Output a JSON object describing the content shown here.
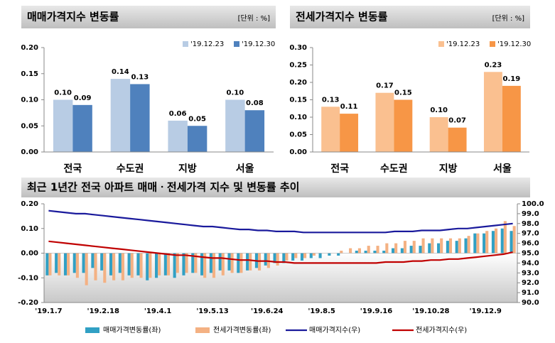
{
  "chart_data": [
    {
      "type": "bar",
      "title": "매매가격지수 변동률",
      "subtitle": "[단위 : %]",
      "categories": [
        "전국",
        "수도권",
        "지방",
        "서울"
      ],
      "series": [
        {
          "name": "'19.12.23",
          "color": "#b8cce4",
          "values": [
            0.1,
            0.14,
            0.06,
            0.1
          ],
          "value_labels": [
            "0.10",
            "0.14",
            "0.06",
            "0.10"
          ]
        },
        {
          "name": "'19.12.30",
          "color": "#4f81bd",
          "values": [
            0.09,
            0.13,
            0.05,
            0.08
          ],
          "value_labels": [
            "0.09",
            "0.13",
            "0.05",
            "0.08"
          ]
        }
      ],
      "ylim": [
        0,
        0.2
      ],
      "yticks": [
        {
          "value": 0,
          "label": "0.00"
        },
        0.05,
        {
          "value": 0.1,
          "label": "0.10"
        },
        0.15,
        {
          "value": 0.2,
          "label": "0.20"
        }
      ],
      "legend": "top-right"
    },
    {
      "type": "bar",
      "title": "전세가격지수 변동률",
      "subtitle": "[단위 : %]",
      "categories": [
        "전국",
        "수도권",
        "지방",
        "서울"
      ],
      "series": [
        {
          "name": "'19.12.23",
          "color": "#fac090",
          "values": [
            0.13,
            0.17,
            0.1,
            0.23
          ],
          "value_labels": [
            "0.13",
            "0.17",
            "0.10",
            "0.23"
          ]
        },
        {
          "name": "'19.12.30",
          "color": "#f79646",
          "values": [
            0.11,
            0.15,
            0.07,
            0.19
          ],
          "value_labels": [
            "0.11",
            "0.15",
            "0.07",
            "0.19"
          ]
        }
      ],
      "ylim": [
        0,
        0.3
      ],
      "yticks": [
        {
          "value": 0,
          "label": "0.00"
        },
        0.05,
        {
          "value": 0.1,
          "label": "0.10"
        },
        0.15,
        {
          "value": 0.2,
          "label": "0.20"
        },
        0.25,
        {
          "value": 0.3,
          "label": "0.30"
        }
      ],
      "legend": "top-right"
    },
    {
      "type": "combo",
      "title": "최근 1년간 전국 아파트 매매ㆍ전세가격 지수 및 변동률 추이",
      "categories": [
        "'19.1.7",
        null,
        null,
        null,
        null,
        null,
        "'19.2.18",
        null,
        null,
        null,
        null,
        null,
        "'19.4.1",
        null,
        null,
        null,
        null,
        null,
        "'19.5.13",
        null,
        null,
        null,
        null,
        null,
        "'19.6.24",
        null,
        null,
        null,
        null,
        null,
        "'19.8.5",
        null,
        null,
        null,
        null,
        null,
        "'19.9.16",
        null,
        null,
        null,
        null,
        null,
        "'19.10.28",
        null,
        null,
        null,
        null,
        null,
        "'19.12.9",
        null,
        null,
        null
      ],
      "series": [
        {
          "name": "매매가격변동률(좌)",
          "type": "bar",
          "color": "#31a0c4",
          "values": [
            -0.09,
            -0.08,
            -0.09,
            -0.08,
            -0.08,
            -0.06,
            -0.07,
            -0.09,
            -0.08,
            -0.09,
            -0.09,
            -0.11,
            -0.1,
            -0.09,
            -0.1,
            -0.09,
            -0.08,
            -0.09,
            -0.08,
            -0.07,
            -0.07,
            -0.08,
            -0.07,
            -0.06,
            -0.05,
            -0.04,
            -0.04,
            -0.03,
            -0.03,
            -0.02,
            -0.02,
            -0.01,
            -0.01,
            0.0,
            0.01,
            0.01,
            0.01,
            0.01,
            0.02,
            0.02,
            0.03,
            0.03,
            0.04,
            0.04,
            0.05,
            0.05,
            0.06,
            0.08,
            0.08,
            0.09,
            0.1,
            0.09
          ]
        },
        {
          "name": "전세가격변동률(좌)",
          "type": "bar",
          "color": "#f4b183",
          "values": [
            -0.09,
            -0.09,
            -0.09,
            -0.1,
            -0.13,
            -0.11,
            -0.12,
            -0.11,
            -0.11,
            -0.1,
            -0.1,
            -0.1,
            -0.09,
            -0.09,
            -0.08,
            -0.08,
            -0.08,
            -0.1,
            -0.1,
            -0.09,
            -0.08,
            -0.08,
            -0.07,
            -0.07,
            -0.06,
            -0.05,
            -0.03,
            -0.02,
            -0.02,
            -0.01,
            0.0,
            0.0,
            0.01,
            0.02,
            0.02,
            0.03,
            0.03,
            0.04,
            0.04,
            0.05,
            0.05,
            0.06,
            0.06,
            0.06,
            0.06,
            0.06,
            0.07,
            0.08,
            0.09,
            0.1,
            0.13,
            0.11
          ]
        },
        {
          "name": "매매가격지수(우)",
          "type": "line",
          "axis": "y2",
          "color": "#1a1a9c",
          "values": [
            99.3,
            99.2,
            99.1,
            99.0,
            99.0,
            98.9,
            98.8,
            98.7,
            98.6,
            98.5,
            98.4,
            98.3,
            98.2,
            98.1,
            98.0,
            97.9,
            97.8,
            97.7,
            97.7,
            97.6,
            97.5,
            97.4,
            97.4,
            97.3,
            97.3,
            97.2,
            97.2,
            97.2,
            97.1,
            97.1,
            97.1,
            97.1,
            97.1,
            97.1,
            97.1,
            97.1,
            97.1,
            97.1,
            97.2,
            97.2,
            97.2,
            97.3,
            97.3,
            97.3,
            97.4,
            97.5,
            97.5,
            97.6,
            97.7,
            97.8,
            97.9,
            98.0
          ]
        },
        {
          "name": "전세가격지수(우)",
          "type": "line",
          "axis": "y2",
          "color": "#c00000",
          "values": [
            96.2,
            96.1,
            96.0,
            95.9,
            95.8,
            95.7,
            95.6,
            95.5,
            95.4,
            95.3,
            95.2,
            95.1,
            95.0,
            94.9,
            94.8,
            94.8,
            94.7,
            94.6,
            94.5,
            94.5,
            94.4,
            94.3,
            94.3,
            94.2,
            94.2,
            94.1,
            94.1,
            94.0,
            94.0,
            94.0,
            94.0,
            94.0,
            94.0,
            94.0,
            94.0,
            94.0,
            94.0,
            94.1,
            94.1,
            94.1,
            94.2,
            94.2,
            94.3,
            94.3,
            94.4,
            94.4,
            94.5,
            94.6,
            94.7,
            94.8,
            94.9,
            95.1
          ]
        }
      ],
      "ylim": [
        -0.2,
        0.2
      ],
      "yticks": [
        {
          "value": -0.2,
          "label": "-0.20"
        },
        {
          "value": -0.1,
          "label": "-0.10"
        },
        {
          "value": 0,
          "label": "0.00"
        },
        {
          "value": 0.1,
          "label": "0.10"
        },
        {
          "value": 0.2,
          "label": "0.20"
        }
      ],
      "y2lim": [
        90,
        100
      ],
      "y2ticks": [
        {
          "value": 90,
          "label": "90.0"
        },
        {
          "value": 91,
          "label": "91.0"
        },
        {
          "value": 92,
          "label": "92.0"
        },
        {
          "value": 93,
          "label": "93.0"
        },
        {
          "value": 94,
          "label": "94.0"
        },
        {
          "value": 95,
          "label": "95.0"
        },
        {
          "value": 96,
          "label": "96.0"
        },
        {
          "value": 97,
          "label": "97.0"
        },
        {
          "value": 98,
          "label": "98.0"
        },
        {
          "value": 99,
          "label": "99.0"
        },
        {
          "value": 100,
          "label": "100.0"
        }
      ],
      "legend": "bottom"
    }
  ]
}
